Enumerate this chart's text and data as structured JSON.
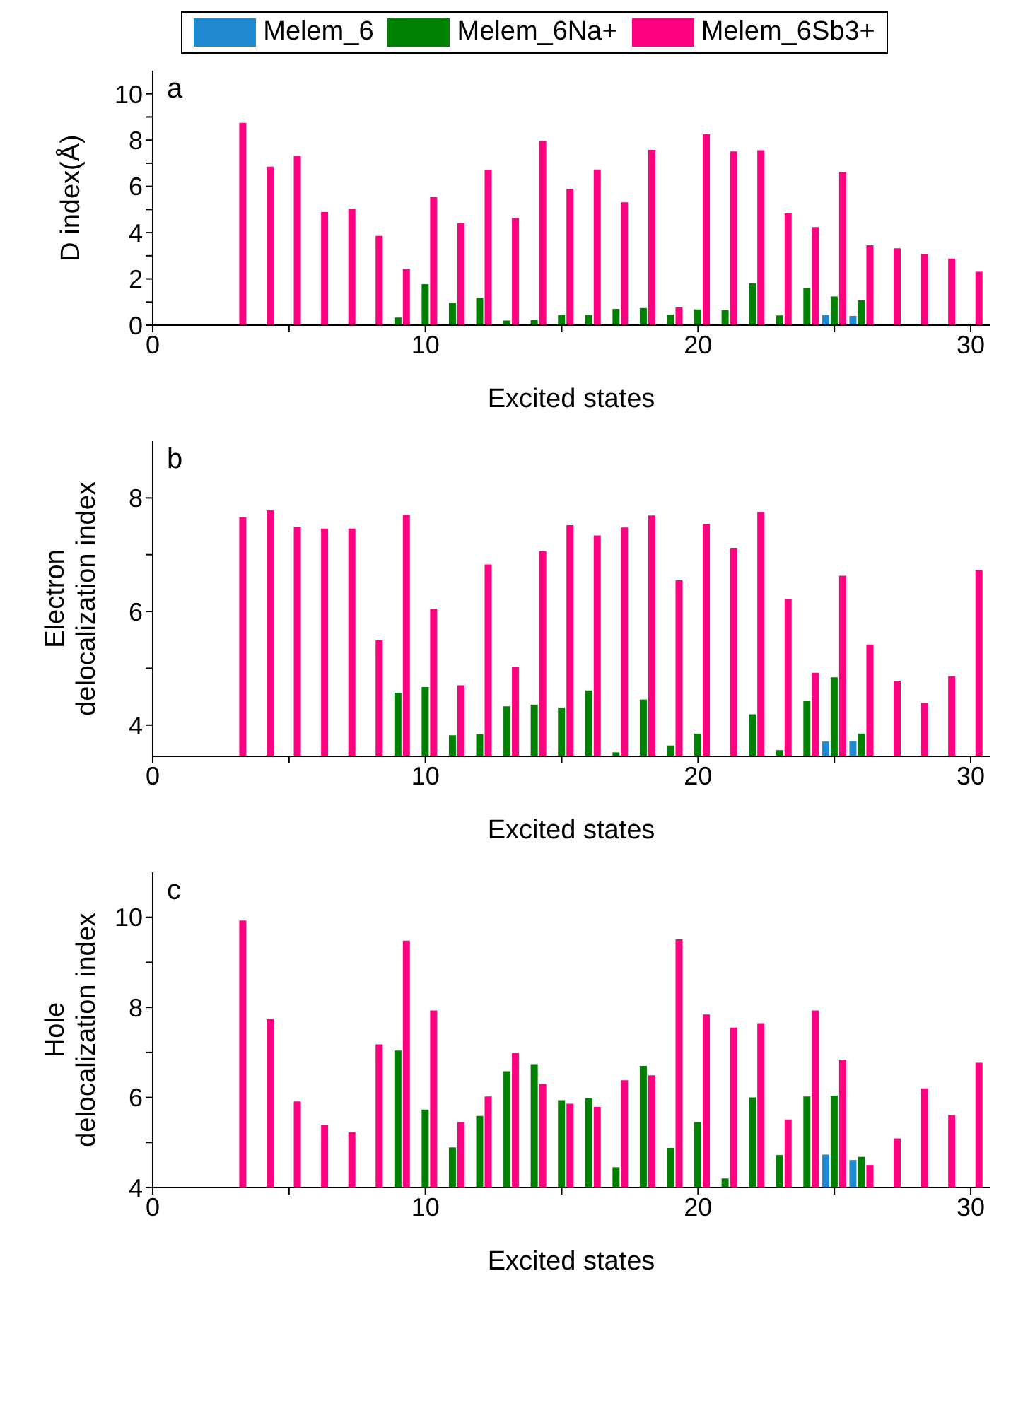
{
  "chart_data": [
    {
      "type": "bar",
      "annotations": [
        "a"
      ],
      "xlabel": "Excited states",
      "ylabel": "D index(Å)",
      "legend": "top",
      "x": [
        3,
        4,
        5,
        6,
        7,
        8,
        9,
        10,
        11,
        12,
        13,
        14,
        15,
        16,
        17,
        18,
        19,
        20,
        21,
        22,
        23,
        24,
        25,
        26,
        27,
        28,
        29,
        30
      ],
      "xlim": [
        0,
        30.7
      ],
      "xticks": [
        0,
        {
          "value": 5,
          "label": null
        },
        10,
        {
          "value": 15,
          "label": null
        },
        20,
        {
          "value": 25,
          "label": null
        },
        30
      ],
      "ylim": [
        0,
        11
      ],
      "yticks": [
        0,
        {
          "value": 1,
          "label": null
        },
        2,
        {
          "value": 3,
          "label": null
        },
        4,
        {
          "value": 5,
          "label": null
        },
        6,
        {
          "value": 7,
          "label": null
        },
        8,
        {
          "value": 9,
          "label": null
        },
        10
      ],
      "series": [
        {
          "name": "Melem_6",
          "color": "#1f8ad0",
          "values": [
            null,
            null,
            null,
            null,
            null,
            null,
            null,
            null,
            null,
            null,
            null,
            null,
            null,
            null,
            null,
            null,
            null,
            null,
            null,
            null,
            null,
            null,
            0.44,
            0.4,
            null,
            null,
            null,
            null
          ]
        },
        {
          "name": "Melem_6Na+",
          "color": "#008000",
          "values": [
            null,
            null,
            null,
            null,
            null,
            null,
            0.33,
            1.77,
            0.96,
            1.18,
            0.2,
            0.22,
            0.44,
            0.44,
            0.7,
            0.74,
            0.46,
            0.68,
            0.65,
            1.81,
            0.42,
            1.6,
            1.24,
            1.07,
            null,
            null,
            null,
            null
          ]
        },
        {
          "name": "Melem_6Sb3+",
          "color": "#ff0080",
          "values": [
            8.75,
            6.85,
            7.32,
            4.89,
            5.04,
            3.86,
            2.42,
            5.54,
            4.41,
            6.72,
            4.63,
            7.97,
            5.9,
            6.73,
            5.31,
            7.58,
            0.77,
            8.25,
            7.51,
            7.56,
            4.83,
            4.24,
            6.62,
            3.45,
            3.32,
            3.08,
            2.88,
            2.31
          ]
        }
      ]
    },
    {
      "type": "bar",
      "annotations": [
        "b"
      ],
      "xlabel": "Excited states",
      "ylabel": "Electron delocalization index",
      "x": [
        3,
        4,
        5,
        6,
        7,
        8,
        9,
        10,
        11,
        12,
        13,
        14,
        15,
        16,
        17,
        18,
        19,
        20,
        21,
        22,
        23,
        24,
        25,
        26,
        27,
        28,
        29,
        30
      ],
      "xlim": [
        0,
        30.7
      ],
      "xticks": [
        0,
        {
          "value": 5,
          "label": null
        },
        10,
        {
          "value": 15,
          "label": null
        },
        20,
        {
          "value": 25,
          "label": null
        },
        30
      ],
      "ylim": [
        3.45,
        9
      ],
      "yticks": [
        4,
        {
          "value": 5,
          "label": null
        },
        6,
        {
          "value": 7,
          "label": null
        },
        8
      ],
      "series": [
        {
          "color": "#1f8ad0",
          "values": [
            null,
            null,
            null,
            null,
            null,
            null,
            null,
            null,
            null,
            null,
            null,
            null,
            null,
            null,
            null,
            null,
            null,
            null,
            null,
            null,
            null,
            null,
            3.71,
            3.72,
            null,
            null,
            null,
            null
          ]
        },
        {
          "color": "#008000",
          "values": [
            null,
            null,
            null,
            null,
            null,
            null,
            4.57,
            4.67,
            3.82,
            3.84,
            4.33,
            4.36,
            4.31,
            4.61,
            3.52,
            4.45,
            3.64,
            3.85,
            null,
            4.19,
            3.56,
            4.43,
            4.84,
            3.85,
            null,
            null,
            null,
            null
          ]
        },
        {
          "color": "#ff0080",
          "values": [
            7.66,
            7.78,
            7.49,
            7.46,
            7.46,
            5.49,
            7.7,
            6.05,
            4.7,
            6.83,
            5.03,
            7.06,
            7.52,
            7.34,
            7.48,
            7.69,
            6.55,
            7.54,
            7.12,
            7.75,
            6.22,
            4.92,
            6.63,
            5.42,
            4.78,
            4.39,
            4.86,
            6.73
          ]
        }
      ]
    },
    {
      "type": "bar",
      "annotations": [
        "c"
      ],
      "xlabel": "Excited states",
      "ylabel": "Hole delocalization index",
      "x": [
        3,
        4,
        5,
        6,
        7,
        8,
        9,
        10,
        11,
        12,
        13,
        14,
        15,
        16,
        17,
        18,
        19,
        20,
        21,
        22,
        23,
        24,
        25,
        26,
        27,
        28,
        29,
        30
      ],
      "xlim": [
        0,
        30.7
      ],
      "xticks": [
        0,
        {
          "value": 5,
          "label": null
        },
        10,
        {
          "value": 15,
          "label": null
        },
        20,
        {
          "value": 25,
          "label": null
        },
        30
      ],
      "ylim": [
        4,
        11
      ],
      "yticks": [
        4,
        {
          "value": 5,
          "label": null
        },
        6,
        {
          "value": 7,
          "label": null
        },
        8,
        {
          "value": 9,
          "label": null
        },
        10
      ],
      "series": [
        {
          "color": "#1f8ad0",
          "values": [
            null,
            null,
            null,
            null,
            null,
            null,
            null,
            null,
            null,
            null,
            null,
            null,
            null,
            null,
            null,
            null,
            null,
            null,
            null,
            null,
            null,
            null,
            4.73,
            4.61,
            null,
            null,
            null,
            null
          ]
        },
        {
          "color": "#008000",
          "values": [
            null,
            null,
            null,
            null,
            null,
            null,
            7.04,
            5.73,
            4.89,
            5.59,
            6.58,
            6.74,
            5.94,
            5.98,
            4.45,
            6.7,
            4.88,
            5.45,
            4.2,
            6.0,
            4.72,
            6.02,
            6.04,
            4.68,
            null,
            null,
            null,
            null
          ]
        },
        {
          "color": "#ff0080",
          "values": [
            9.93,
            7.74,
            5.91,
            5.39,
            5.23,
            7.18,
            9.48,
            7.93,
            5.45,
            6.02,
            6.99,
            6.3,
            5.86,
            5.79,
            6.38,
            6.49,
            9.51,
            7.84,
            7.55,
            7.65,
            5.51,
            7.93,
            6.84,
            4.5,
            5.09,
            6.2,
            5.61,
            6.77
          ]
        }
      ]
    }
  ]
}
